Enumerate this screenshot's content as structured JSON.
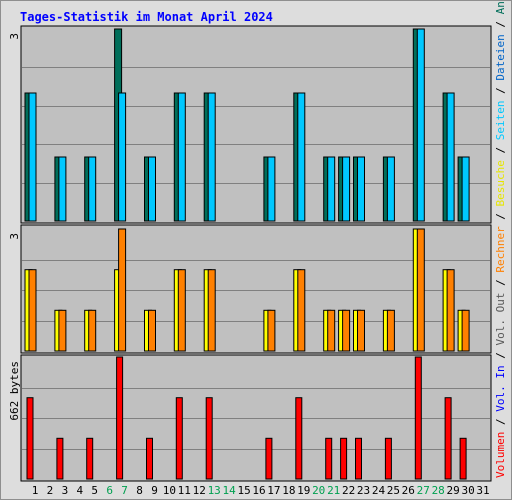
{
  "chart_data": {
    "type": "bar",
    "title": "Tages-Statistik im Monat April 2024",
    "categories": [
      "1",
      "2",
      "3",
      "4",
      "5",
      "6",
      "7",
      "8",
      "9",
      "10",
      "11",
      "12",
      "13",
      "14",
      "15",
      "16",
      "17",
      "18",
      "19",
      "20",
      "21",
      "22",
      "23",
      "24",
      "25",
      "26",
      "27",
      "28",
      "29",
      "30",
      "31"
    ],
    "weekend_days": [
      6,
      7,
      13,
      14,
      20,
      21,
      27,
      28
    ],
    "panels": [
      {
        "id": "requests",
        "ymax_label": "3",
        "ylim": [
          0,
          3
        ],
        "series": [
          {
            "name": "Anfragen",
            "color": "#006e5a",
            "values": [
              2,
              0,
              1,
              0,
              1,
              0,
              3,
              0,
              1,
              0,
              2,
              0,
              2,
              0,
              0,
              0,
              1,
              0,
              2,
              0,
              1,
              1,
              1,
              0,
              1,
              0,
              3,
              0,
              2,
              1,
              0
            ]
          },
          {
            "name": "Dateien",
            "color": "#00c8ff",
            "values": [
              2,
              0,
              1,
              0,
              1,
              0,
              2,
              0,
              1,
              0,
              2,
              0,
              2,
              0,
              0,
              0,
              1,
              0,
              2,
              0,
              1,
              1,
              1,
              0,
              1,
              0,
              3,
              0,
              2,
              1,
              0
            ]
          },
          {
            "name": "Seiten",
            "color": "#00d2ff",
            "values": [
              0,
              0,
              0,
              0,
              0,
              0,
              0,
              0,
              0,
              0,
              0,
              0,
              0,
              0,
              0,
              0,
              0,
              0,
              0,
              0,
              0,
              0,
              0,
              0,
              0,
              0,
              0,
              0,
              0,
              0,
              0
            ]
          }
        ]
      },
      {
        "id": "visits",
        "ymax_label": "3",
        "ylim": [
          0,
          3
        ],
        "series": [
          {
            "name": "Besuche",
            "color": "#ffff00",
            "values": [
              2,
              0,
              1,
              0,
              1,
              0,
              2,
              0,
              1,
              0,
              2,
              0,
              2,
              0,
              0,
              0,
              1,
              0,
              2,
              0,
              1,
              1,
              1,
              0,
              1,
              0,
              3,
              0,
              2,
              1,
              0
            ]
          },
          {
            "name": "Rechner",
            "color": "#ff8000",
            "values": [
              2,
              0,
              1,
              0,
              1,
              0,
              3,
              0,
              1,
              0,
              2,
              0,
              2,
              0,
              0,
              0,
              1,
              0,
              2,
              0,
              1,
              1,
              1,
              0,
              1,
              0,
              3,
              0,
              2,
              1,
              0
            ]
          }
        ]
      },
      {
        "id": "volume",
        "ymax_label": "662 bytes",
        "ylim": [
          0,
          662
        ],
        "series": [
          {
            "name": "Volumen",
            "color": "#ff0000",
            "values": [
              441,
              0,
              221,
              0,
              221,
              0,
              662,
              0,
              221,
              0,
              441,
              0,
              441,
              0,
              0,
              0,
              221,
              0,
              441,
              0,
              221,
              221,
              221,
              0,
              221,
              0,
              662,
              0,
              441,
              221,
              0
            ]
          }
        ]
      }
    ],
    "legend": [
      {
        "text": "Volumen",
        "color": "#ff0000"
      },
      {
        "text": " / ",
        "color": "#000000"
      },
      {
        "text": "Vol. In",
        "color": "#0000ff"
      },
      {
        "text": " / ",
        "color": "#000000"
      },
      {
        "text": "Vol. Out",
        "color": "#5a5a5a"
      },
      {
        "text": " / ",
        "color": "#000000"
      },
      {
        "text": "Rechner",
        "color": "#ff8000"
      },
      {
        "text": " / ",
        "color": "#000000"
      },
      {
        "text": "Besuche",
        "color": "#e6e600"
      },
      {
        "text": " / ",
        "color": "#000000"
      },
      {
        "text": "Seiten",
        "color": "#00c8ff"
      },
      {
        "text": " / ",
        "color": "#000000"
      },
      {
        "text": "Dateien",
        "color": "#0064c8"
      },
      {
        "text": " / ",
        "color": "#000000"
      },
      {
        "text": "Anfragen",
        "color": "#006e5a"
      }
    ],
    "colors": {
      "plot_background": "#c0c0c0",
      "frame_background": "#dddddd",
      "title": "#0000ff",
      "weekday_label": "#000000",
      "weekend_label": "#00a050",
      "gridline": "#808080"
    },
    "grid": true,
    "legend_placement": "right-vertical"
  }
}
